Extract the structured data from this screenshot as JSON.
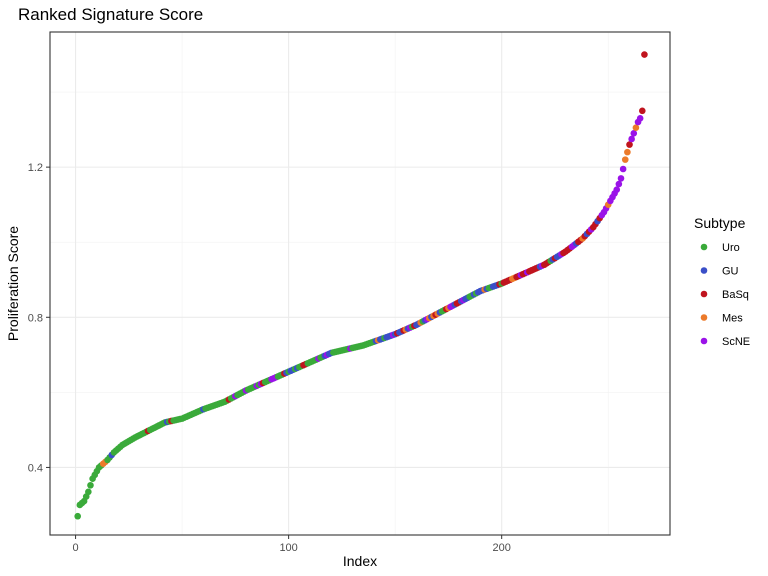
{
  "chart_data": {
    "type": "scatter",
    "title": "Ranked Signature Score",
    "xlabel": "Index",
    "ylabel": "Proliferation Score",
    "xlim": [
      -12,
      279
    ],
    "ylim": [
      0.22,
      1.56
    ],
    "x_ticks": [
      0,
      100,
      200
    ],
    "x_tick_labels": [
      "0",
      "100",
      "200"
    ],
    "y_ticks": [
      0.4,
      0.8,
      1.2
    ],
    "y_tick_labels": [
      "0.4",
      "0.8",
      "1.2"
    ],
    "grid": true,
    "legend": {
      "title": "Subtype",
      "placement": "right",
      "entries": [
        {
          "name": "Uro",
          "color": "#3aaa3a"
        },
        {
          "name": "GU",
          "color": "#3a4fc8"
        },
        {
          "name": "BaSq",
          "color": "#c0141e"
        },
        {
          "name": "Mes",
          "color": "#ec7a2a"
        },
        {
          "name": "ScNE",
          "color": "#9a12e8"
        }
      ]
    },
    "n_points": 267,
    "curve_knots": [
      [
        1,
        0.27
      ],
      [
        2,
        0.3
      ],
      [
        4,
        0.31
      ],
      [
        6,
        0.335
      ],
      [
        8,
        0.37
      ],
      [
        11,
        0.4
      ],
      [
        15,
        0.42
      ],
      [
        18,
        0.44
      ],
      [
        22,
        0.46
      ],
      [
        28,
        0.48
      ],
      [
        35,
        0.5
      ],
      [
        42,
        0.52
      ],
      [
        50,
        0.53
      ],
      [
        60,
        0.555
      ],
      [
        70,
        0.575
      ],
      [
        80,
        0.605
      ],
      [
        90,
        0.63
      ],
      [
        100,
        0.655
      ],
      [
        110,
        0.68
      ],
      [
        120,
        0.705
      ],
      [
        135,
        0.725
      ],
      [
        150,
        0.755
      ],
      [
        160,
        0.78
      ],
      [
        170,
        0.81
      ],
      [
        180,
        0.84
      ],
      [
        190,
        0.87
      ],
      [
        200,
        0.89
      ],
      [
        210,
        0.915
      ],
      [
        220,
        0.94
      ],
      [
        230,
        0.975
      ],
      [
        238,
        1.01
      ],
      [
        243,
        1.04
      ],
      [
        248,
        1.08
      ],
      [
        251,
        1.11
      ],
      [
        254,
        1.14
      ],
      [
        256,
        1.17
      ],
      [
        258,
        1.22
      ],
      [
        260,
        1.26
      ],
      [
        262,
        1.29
      ],
      [
        264,
        1.32
      ],
      [
        265,
        1.33
      ],
      [
        266,
        1.35
      ],
      [
        267,
        1.5
      ]
    ],
    "subtype_pattern": [
      {
        "from": 1,
        "to": 12,
        "subtype": "Uro"
      },
      {
        "from": 13,
        "to": 14,
        "subtype": "Mes"
      },
      {
        "from": 15,
        "to": 70,
        "subtype": "Uro",
        "mix": [
          "GU",
          "BaSq"
        ],
        "rate": 0.1
      },
      {
        "from": 71,
        "to": 140,
        "subtype": "Uro",
        "mix": [
          "GU",
          "BaSq",
          "ScNE"
        ],
        "rate": 0.3
      },
      {
        "from": 141,
        "to": 200,
        "subtype": "GU",
        "mix": [
          "Uro",
          "BaSq",
          "ScNE",
          "Mes"
        ],
        "rate": 0.5
      },
      {
        "from": 201,
        "to": 245,
        "subtype": "BaSq",
        "mix": [
          "GU",
          "ScNE",
          "Mes",
          "Uro"
        ],
        "rate": 0.45
      },
      {
        "from": 246,
        "to": 267,
        "subtype": "ScNE",
        "mix": [
          "BaSq",
          "Mes"
        ],
        "rate": 0.35
      }
    ]
  }
}
